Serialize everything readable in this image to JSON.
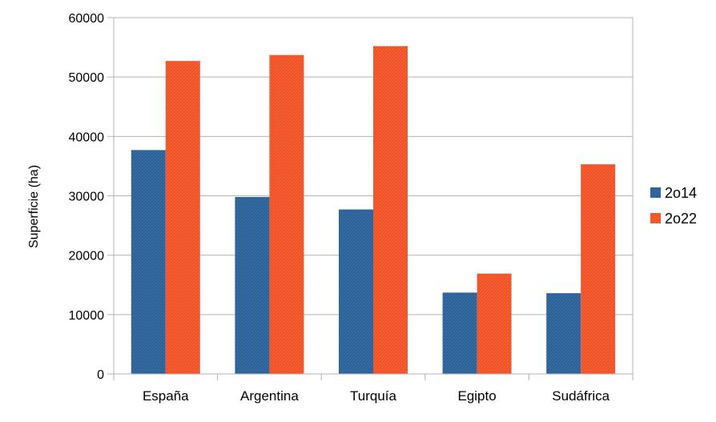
{
  "chart_data": {
    "type": "bar",
    "title": "",
    "xlabel": "",
    "ylabel": "Superficie (ha)",
    "ylim": [
      0,
      60000
    ],
    "yticks": [
      0,
      10000,
      20000,
      30000,
      40000,
      50000,
      60000
    ],
    "grid": true,
    "legend_position": "right",
    "categories": [
      "España",
      "Argentina",
      "Turquía",
      "Egipto",
      "Sudáfrica"
    ],
    "series": [
      {
        "name": "2o14",
        "color": "#2a5f96",
        "values": [
          37700,
          29800,
          27700,
          13700,
          13600
        ]
      },
      {
        "name": "2o22",
        "color": "#f04e23",
        "values": [
          52700,
          53700,
          55200,
          16900,
          35300
        ]
      }
    ]
  }
}
